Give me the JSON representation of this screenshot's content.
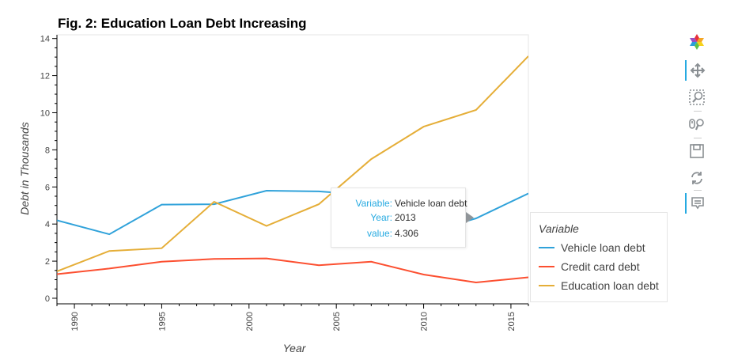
{
  "chart_data": {
    "type": "line",
    "title": "Fig. 2: Education Loan Debt Increasing",
    "xlabel": "Year",
    "ylabel": "Debt in Thousands",
    "xlim": [
      1989,
      2016
    ],
    "ylim": [
      -0.3,
      14.2
    ],
    "x_ticks": [
      1990,
      1995,
      2000,
      2005,
      2010,
      2015
    ],
    "y_ticks": [
      0,
      2,
      4,
      6,
      8,
      10,
      12,
      14
    ],
    "legend_title": "Variable",
    "legend_position": "right",
    "grid": false,
    "series": [
      {
        "name": "Vehicle loan debt",
        "color": "#30a2da",
        "x": [
          1989,
          1992,
          1995,
          1998,
          2001,
          2004,
          2007,
          2010,
          2013,
          2016
        ],
        "values": [
          4.2,
          3.45,
          5.05,
          5.07,
          5.8,
          5.76,
          5.55,
          3.5,
          4.306,
          5.65
        ]
      },
      {
        "name": "Credit card debt",
        "color": "#fc4f30",
        "x": [
          1989,
          1992,
          1995,
          1998,
          2001,
          2004,
          2007,
          2010,
          2013,
          2016
        ],
        "values": [
          1.3,
          1.6,
          1.97,
          2.12,
          2.15,
          1.78,
          1.97,
          1.28,
          0.85,
          1.13
        ]
      },
      {
        "name": "Education loan debt",
        "color": "#e5ae38",
        "x": [
          1989,
          1992,
          1995,
          1998,
          2001,
          2004,
          2007,
          2010,
          2013,
          2016
        ],
        "values": [
          1.45,
          2.55,
          2.7,
          5.2,
          3.9,
          5.07,
          7.5,
          9.25,
          10.15,
          13.05
        ]
      }
    ]
  },
  "tooltip": {
    "rows": [
      {
        "key": "Variable:",
        "value": "Vehicle loan debt"
      },
      {
        "key": "Year:",
        "value": "2013"
      },
      {
        "key": "value:",
        "value": "4.306"
      }
    ]
  },
  "toolbar": {
    "tools": [
      {
        "icon": "bokeh-logo-icon",
        "active": false
      },
      {
        "icon": "pan-icon",
        "active": true
      },
      {
        "icon": "box-zoom-icon",
        "active": false
      },
      {
        "icon": "wheel-zoom-icon",
        "active": false
      },
      {
        "icon": "save-icon",
        "active": false
      },
      {
        "icon": "reset-icon",
        "active": false
      },
      {
        "icon": "hover-icon",
        "active": true
      }
    ],
    "accent_color": "#26aae1"
  }
}
